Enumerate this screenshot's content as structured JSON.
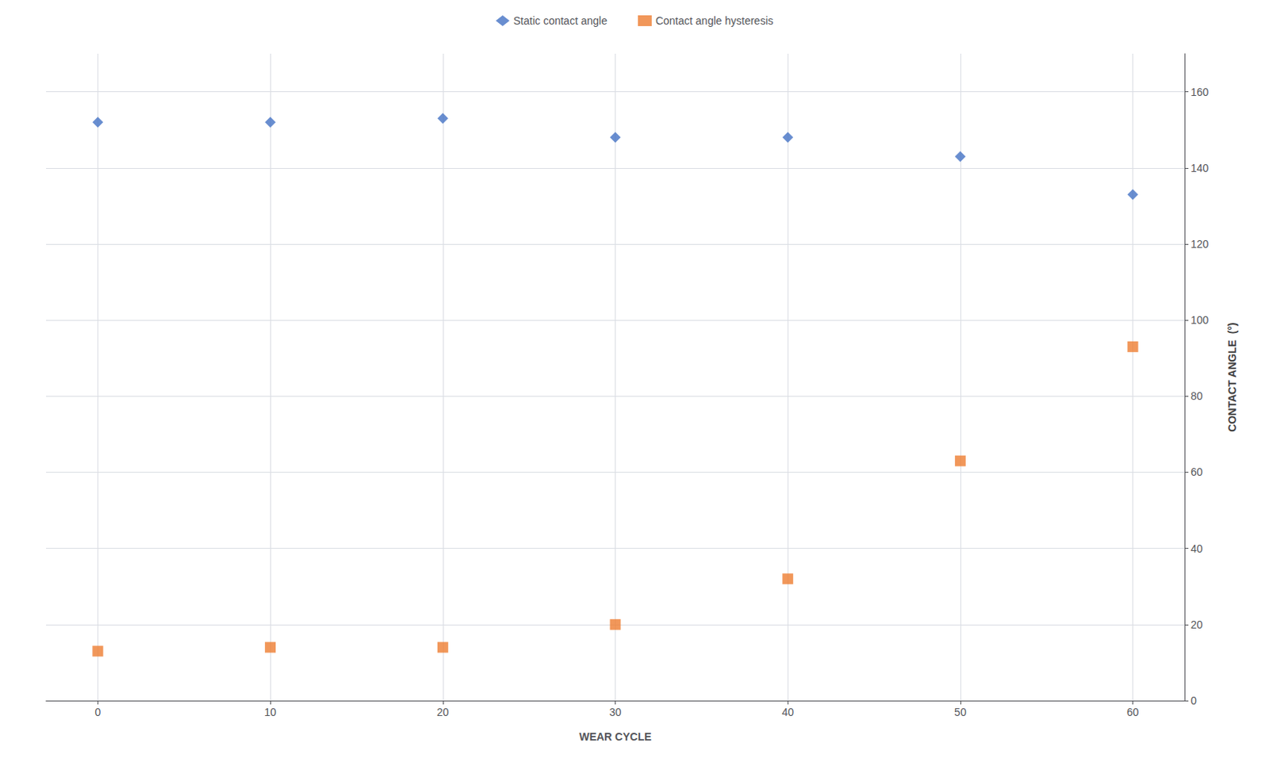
{
  "chart_data": {
    "type": "scatter",
    "x": [
      0,
      10,
      20,
      30,
      40,
      50,
      60
    ],
    "series": [
      {
        "name": "Static contact angle",
        "color": "#4472C4",
        "marker": "diamond",
        "values": [
          152,
          152,
          153,
          148,
          148,
          143,
          133
        ]
      },
      {
        "name": "Contact angle hysteresis",
        "color": "#ED7D31",
        "marker": "square",
        "values": [
          13,
          14,
          14,
          20,
          32,
          63,
          93
        ]
      }
    ],
    "xlabel": "WEAR CYCLE",
    "ylabel": "CONTACT ANGLE  (°)",
    "xlim": [
      -3,
      63
    ],
    "xticks": [
      0,
      10,
      20,
      30,
      40,
      50,
      60
    ],
    "ylim": [
      0,
      170
    ],
    "yticks": [
      0,
      20,
      40,
      60,
      80,
      100,
      120,
      140,
      160
    ],
    "grid": true,
    "legend": "top"
  }
}
